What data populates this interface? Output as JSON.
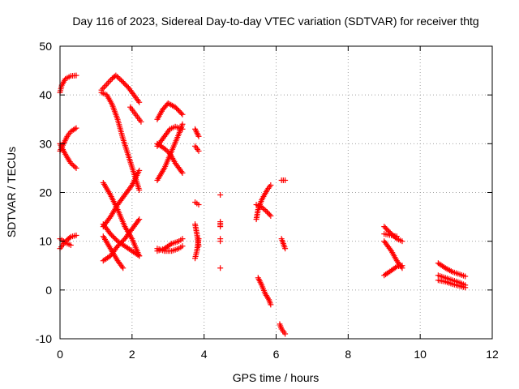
{
  "chart_data": {
    "type": "scatter",
    "title": "Day 116 of 2023, Sidereal Day-to-day VTEC variation (SDTVAR) for receiver thtg",
    "xlabel": "GPS time / hours",
    "ylabel": "SDTVAR / TECUs",
    "xlim": [
      0,
      12
    ],
    "ylim": [
      -10,
      50
    ],
    "xticks": [
      0,
      2,
      4,
      6,
      8,
      10,
      12
    ],
    "yticks": [
      -10,
      0,
      10,
      20,
      30,
      40,
      50
    ],
    "grid": true,
    "marker": "+",
    "color": "#ff0000",
    "arcs": [
      {
        "name": "arc-a1",
        "points": [
          [
            0.0,
            40.5
          ],
          [
            0.05,
            42
          ],
          [
            0.15,
            43.3
          ],
          [
            0.3,
            43.9
          ],
          [
            0.45,
            44
          ]
        ]
      },
      {
        "name": "arc-a2",
        "points": [
          [
            0.0,
            28.5
          ],
          [
            0.1,
            30
          ],
          [
            0.2,
            31.5
          ],
          [
            0.3,
            32.5
          ],
          [
            0.45,
            33.2
          ]
        ]
      },
      {
        "name": "arc-a3",
        "points": [
          [
            0.0,
            30
          ],
          [
            0.1,
            28.5
          ],
          [
            0.2,
            27.2
          ],
          [
            0.3,
            26
          ],
          [
            0.45,
            25
          ]
        ]
      },
      {
        "name": "arc-a4",
        "points": [
          [
            0.0,
            8.5
          ],
          [
            0.1,
            9.5
          ],
          [
            0.2,
            10.3
          ],
          [
            0.3,
            10.9
          ],
          [
            0.45,
            11.2
          ]
        ]
      },
      {
        "name": "arc-a5",
        "points": [
          [
            0.0,
            10.5
          ],
          [
            0.1,
            10
          ],
          [
            0.2,
            9.5
          ],
          [
            0.3,
            9.2
          ]
        ]
      },
      {
        "name": "arc-b1",
        "points": [
          [
            1.15,
            41
          ],
          [
            1.3,
            42.2
          ],
          [
            1.45,
            43.4
          ],
          [
            1.55,
            44
          ],
          [
            1.7,
            43
          ],
          [
            1.9,
            41.5
          ],
          [
            2.05,
            40
          ],
          [
            2.2,
            38.5
          ]
        ]
      },
      {
        "name": "arc-b2",
        "points": [
          [
            1.15,
            40.5
          ],
          [
            1.3,
            40
          ],
          [
            1.45,
            38
          ],
          [
            1.6,
            35
          ],
          [
            1.75,
            31
          ],
          [
            1.9,
            27.5
          ],
          [
            2.05,
            24
          ],
          [
            2.2,
            20.5
          ]
        ]
      },
      {
        "name": "arc-b3",
        "points": [
          [
            1.2,
            22
          ],
          [
            1.4,
            19.5
          ],
          [
            1.6,
            16.5
          ],
          [
            1.8,
            13
          ],
          [
            2.0,
            10.5
          ],
          [
            2.2,
            7
          ]
        ]
      },
      {
        "name": "arc-b4",
        "points": [
          [
            1.2,
            13
          ],
          [
            1.4,
            15
          ],
          [
            1.6,
            17.5
          ],
          [
            1.8,
            19.5
          ],
          [
            2.0,
            21.5
          ],
          [
            2.2,
            24.5
          ]
        ]
      },
      {
        "name": "arc-b5",
        "points": [
          [
            1.2,
            11
          ],
          [
            1.4,
            8.5
          ],
          [
            1.6,
            6
          ],
          [
            1.75,
            4.5
          ]
        ]
      },
      {
        "name": "arc-b6",
        "points": [
          [
            1.2,
            6
          ],
          [
            1.4,
            7
          ],
          [
            1.6,
            9
          ],
          [
            1.8,
            10.5
          ],
          [
            2.0,
            12.5
          ],
          [
            2.2,
            14.5
          ]
        ]
      },
      {
        "name": "arc-b7",
        "points": [
          [
            1.2,
            13.5
          ],
          [
            1.4,
            11.5
          ],
          [
            1.6,
            10
          ],
          [
            1.8,
            9
          ],
          [
            2.0,
            8
          ],
          [
            2.2,
            7
          ]
        ]
      },
      {
        "name": "arc-c1",
        "points": [
          [
            1.95,
            37.5
          ],
          [
            2.05,
            36.5
          ],
          [
            2.15,
            35.5
          ],
          [
            2.25,
            34.5
          ]
        ]
      },
      {
        "name": "arc-c2",
        "points": [
          [
            2.7,
            35
          ],
          [
            2.85,
            37
          ],
          [
            3.0,
            38.3
          ],
          [
            3.2,
            37.5
          ],
          [
            3.4,
            36
          ]
        ]
      },
      {
        "name": "arc-c3",
        "points": [
          [
            2.7,
            29.5
          ],
          [
            2.9,
            31.5
          ],
          [
            3.05,
            33
          ],
          [
            3.2,
            33.5
          ],
          [
            3.4,
            33
          ]
        ]
      },
      {
        "name": "arc-c4",
        "points": [
          [
            2.7,
            22.5
          ],
          [
            2.9,
            25
          ],
          [
            3.1,
            28.5
          ],
          [
            3.3,
            32
          ],
          [
            3.4,
            34
          ]
        ]
      },
      {
        "name": "arc-c5",
        "points": [
          [
            2.7,
            30
          ],
          [
            2.9,
            29
          ],
          [
            3.05,
            28
          ],
          [
            3.2,
            26
          ],
          [
            3.4,
            24
          ]
        ]
      },
      {
        "name": "arc-c6",
        "points": [
          [
            2.7,
            8.5
          ],
          [
            2.9,
            8
          ],
          [
            3.1,
            8
          ],
          [
            3.3,
            8.5
          ],
          [
            3.4,
            9
          ]
        ]
      },
      {
        "name": "arc-c7",
        "points": [
          [
            2.7,
            8
          ],
          [
            2.9,
            8.5
          ],
          [
            3.1,
            9.5
          ],
          [
            3.3,
            10
          ],
          [
            3.4,
            10.5
          ]
        ]
      },
      {
        "name": "arc-d1",
        "points": [
          [
            3.75,
            33
          ],
          [
            3.85,
            31.5
          ]
        ]
      },
      {
        "name": "arc-d2",
        "points": [
          [
            3.75,
            29.5
          ],
          [
            3.85,
            28.5
          ]
        ]
      },
      {
        "name": "arc-d3",
        "points": [
          [
            3.75,
            18
          ],
          [
            3.85,
            17.5
          ]
        ]
      },
      {
        "name": "arc-d4",
        "points": [
          [
            3.75,
            13.5
          ],
          [
            3.8,
            11.5
          ],
          [
            3.85,
            9
          ]
        ]
      },
      {
        "name": "arc-d5",
        "points": [
          [
            3.75,
            6.5
          ],
          [
            3.8,
            8
          ],
          [
            3.85,
            10.5
          ]
        ]
      },
      {
        "name": "arc-e1",
        "points": [
          [
            4.45,
            19.5
          ]
        ]
      },
      {
        "name": "arc-e2",
        "points": [
          [
            4.45,
            14
          ],
          [
            4.45,
            13
          ]
        ]
      },
      {
        "name": "arc-e3",
        "points": [
          [
            4.45,
            10.5
          ],
          [
            4.45,
            10
          ]
        ]
      },
      {
        "name": "arc-e4",
        "points": [
          [
            4.45,
            4.5
          ]
        ]
      },
      {
        "name": "arc-f1",
        "points": [
          [
            5.45,
            14.5
          ],
          [
            5.5,
            16.5
          ],
          [
            5.6,
            18.5
          ],
          [
            5.75,
            20.5
          ],
          [
            5.85,
            21.5
          ]
        ]
      },
      {
        "name": "arc-f2",
        "points": [
          [
            5.45,
            17.5
          ],
          [
            5.6,
            17
          ],
          [
            5.75,
            16
          ],
          [
            5.85,
            15.2
          ]
        ]
      },
      {
        "name": "arc-f3",
        "points": [
          [
            5.5,
            2.5
          ],
          [
            5.6,
            1
          ],
          [
            5.7,
            -0.8
          ],
          [
            5.8,
            -2
          ],
          [
            5.85,
            -3
          ]
        ]
      },
      {
        "name": "arc-f4",
        "points": [
          [
            6.15,
            22.5
          ],
          [
            6.25,
            22.5
          ]
        ]
      },
      {
        "name": "arc-f5",
        "points": [
          [
            6.15,
            10.5
          ],
          [
            6.2,
            9.5
          ],
          [
            6.25,
            8.5
          ]
        ]
      },
      {
        "name": "arc-f6",
        "points": [
          [
            6.1,
            -7
          ],
          [
            6.15,
            -8
          ],
          [
            6.25,
            -9
          ]
        ]
      },
      {
        "name": "arc-g1",
        "points": [
          [
            9.0,
            13
          ],
          [
            9.2,
            11.5
          ],
          [
            9.35,
            10.5
          ],
          [
            9.5,
            10
          ]
        ]
      },
      {
        "name": "arc-g2",
        "points": [
          [
            9.0,
            11.5
          ],
          [
            9.2,
            11.2
          ],
          [
            9.35,
            11
          ]
        ]
      },
      {
        "name": "arc-g3",
        "points": [
          [
            9.0,
            10
          ],
          [
            9.2,
            8
          ],
          [
            9.35,
            6
          ],
          [
            9.5,
            4.5
          ]
        ]
      },
      {
        "name": "arc-g4",
        "points": [
          [
            9.0,
            3
          ],
          [
            9.2,
            4
          ],
          [
            9.35,
            4.8
          ],
          [
            9.5,
            5
          ]
        ]
      },
      {
        "name": "arc-h1",
        "points": [
          [
            10.5,
            5.5
          ],
          [
            10.7,
            4.5
          ],
          [
            10.9,
            3.7
          ],
          [
            11.1,
            3.2
          ],
          [
            11.25,
            2.8
          ]
        ]
      },
      {
        "name": "arc-h2",
        "points": [
          [
            10.5,
            3
          ],
          [
            10.7,
            2.5
          ],
          [
            10.9,
            2
          ],
          [
            11.1,
            1.5
          ],
          [
            11.25,
            1
          ]
        ]
      },
      {
        "name": "arc-h3",
        "points": [
          [
            10.5,
            2
          ],
          [
            10.7,
            1.7
          ],
          [
            10.9,
            1.2
          ],
          [
            11.1,
            0.8
          ],
          [
            11.25,
            0.5
          ]
        ]
      }
    ]
  }
}
